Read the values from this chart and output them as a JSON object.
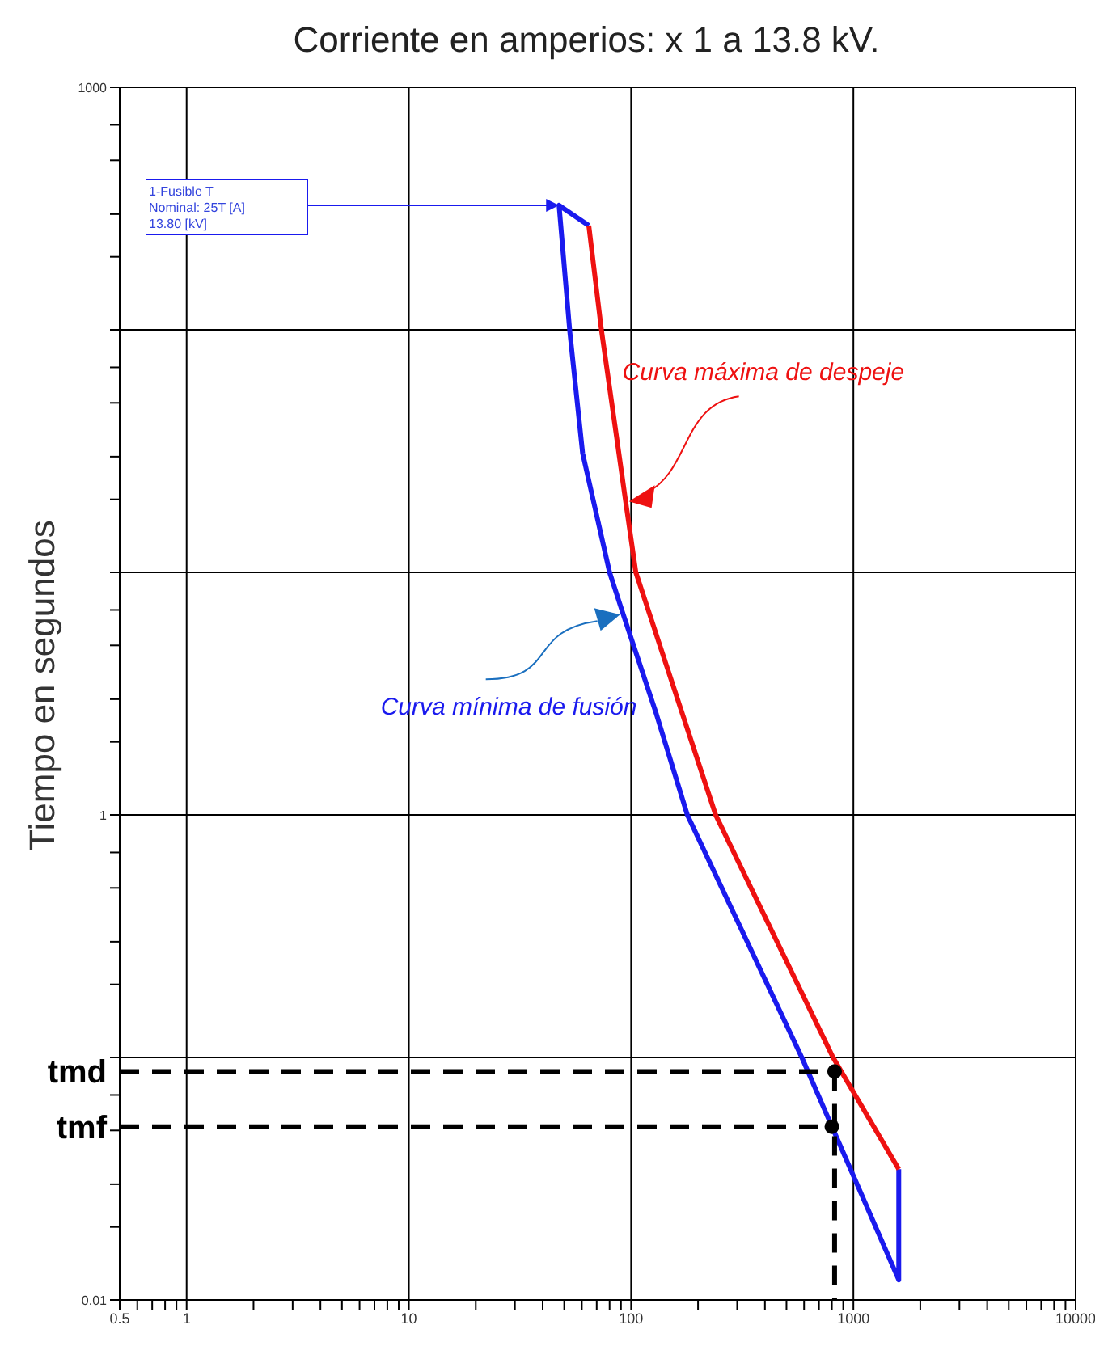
{
  "chart_data": {
    "type": "line",
    "title": "Corriente en amperios: x 1 a 13.8 kV.",
    "ylabel": "Tiempo en segundos",
    "log": "xy",
    "grid": true,
    "xlim": [
      0.5,
      10000
    ],
    "xticks": [
      0.5,
      {
        "value": 0.6,
        "label": null
      },
      {
        "value": 0.7,
        "label": null
      },
      {
        "value": 0.8,
        "label": null
      },
      {
        "value": 0.9,
        "label": null
      },
      1,
      {
        "value": 2,
        "label": null
      },
      {
        "value": 3,
        "label": null
      },
      {
        "value": 4,
        "label": null
      },
      {
        "value": 5,
        "label": null
      },
      {
        "value": 6,
        "label": null
      },
      {
        "value": 7,
        "label": null
      },
      {
        "value": 8,
        "label": null
      },
      {
        "value": 9,
        "label": null
      },
      10,
      {
        "value": 20,
        "label": null
      },
      {
        "value": 30,
        "label": null
      },
      {
        "value": 40,
        "label": null
      },
      {
        "value": 50,
        "label": null
      },
      {
        "value": 60,
        "label": null
      },
      {
        "value": 70,
        "label": null
      },
      {
        "value": 80,
        "label": null
      },
      {
        "value": 90,
        "label": null
      },
      100,
      {
        "value": 200,
        "label": null
      },
      {
        "value": 300,
        "label": null
      },
      {
        "value": 400,
        "label": null
      },
      {
        "value": 500,
        "label": null
      },
      {
        "value": 600,
        "label": null
      },
      {
        "value": 700,
        "label": null
      },
      {
        "value": 800,
        "label": null
      },
      {
        "value": 900,
        "label": null
      },
      1000,
      {
        "value": 2000,
        "label": null
      },
      {
        "value": 3000,
        "label": null
      },
      {
        "value": 4000,
        "label": null
      },
      {
        "value": 5000,
        "label": null
      },
      {
        "value": 6000,
        "label": null
      },
      {
        "value": 7000,
        "label": null
      },
      {
        "value": 8000,
        "label": null
      },
      {
        "value": 9000,
        "label": null
      },
      10000
    ],
    "ylim": [
      0.01,
      1000
    ],
    "yticks": [
      0.01,
      {
        "value": 0.02,
        "label": null
      },
      {
        "value": 0.03,
        "label": null
      },
      {
        "value": 0.05,
        "label": null
      },
      {
        "value": 0.07,
        "label": null
      },
      {
        "value": 0.1,
        "label": null
      },
      {
        "value": 0.2,
        "label": null
      },
      {
        "value": 0.3,
        "label": null
      },
      {
        "value": 0.5,
        "label": null
      },
      {
        "value": 0.7,
        "label": null
      },
      1,
      {
        "value": 2,
        "label": null
      },
      {
        "value": 3,
        "label": null
      },
      {
        "value": 5,
        "label": null
      },
      {
        "value": 7,
        "label": null
      },
      {
        "value": 10,
        "label": null
      },
      {
        "value": 20,
        "label": null
      },
      {
        "value": 30,
        "label": null
      },
      {
        "value": 50,
        "label": null
      },
      {
        "value": 70,
        "label": null
      },
      {
        "value": 100,
        "label": null
      },
      {
        "value": 200,
        "label": null
      },
      {
        "value": 300,
        "label": null
      },
      {
        "value": 500,
        "label": null
      },
      {
        "value": 700,
        "label": null
      },
      1000
    ],
    "series": [
      {
        "color": "#1a1aee",
        "marker": "none",
        "line_style": "solid",
        "x": [
          64.5,
          47.4,
          53,
          60.5,
          80,
          92.2,
          130,
          179,
          586,
          1600,
          1600
        ],
        "values": [
          269,
          326,
          98,
          31,
          10,
          6.7,
          2.6,
          1,
          0.1,
          0.0121,
          0.0346
        ]
      },
      {
        "color": "#ee1111",
        "marker": "none",
        "line_style": "solid",
        "x": [
          64.5,
          73.5,
          90.7,
          94.5,
          105,
          240,
          810,
          1600
        ],
        "values": [
          269,
          100,
          25.6,
          19.6,
          10,
          1,
          0.1,
          0.0346
        ]
      },
      {
        "color": "#000000",
        "marker": "none",
        "line_style": "dashed",
        "x": [
          0.5,
          823
        ],
        "values": [
          0.0875,
          0.0875
        ]
      },
      {
        "color": "#000000",
        "marker": "none",
        "line_style": "dashed",
        "x": [
          0.5,
          800
        ],
        "values": [
          0.0518,
          0.0518
        ]
      },
      {
        "color": "#000000",
        "marker": "none",
        "line_style": "dashed",
        "x": [
          823,
          823
        ],
        "values": [
          0.0875,
          0.01
        ]
      },
      {
        "type": "scatter",
        "color": "#000000",
        "marker": "circle",
        "x": [
          823,
          800
        ],
        "values": [
          0.0875,
          0.0518
        ]
      }
    ],
    "annotations": [
      "Curva mínima de fusión",
      "Curva máxima de despeje",
      "1-Fusible T\nNominal: 25T [A]\n13.80 [kV]",
      {
        "text": "tmd",
        "x": 0.5,
        "y": 0.0875
      },
      {
        "text": "tmf",
        "x": 0.5,
        "y": 0.0518
      }
    ]
  }
}
